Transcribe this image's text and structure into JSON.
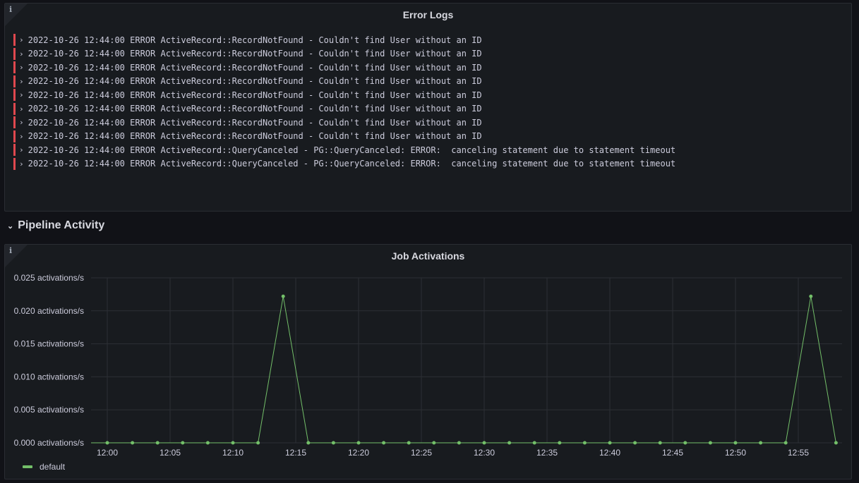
{
  "error_logs": {
    "title": "Error Logs",
    "entries": [
      "2022-10-26 12:44:00 ERROR ActiveRecord::RecordNotFound - Couldn't find User without an ID",
      "2022-10-26 12:44:00 ERROR ActiveRecord::RecordNotFound - Couldn't find User without an ID",
      "2022-10-26 12:44:00 ERROR ActiveRecord::RecordNotFound - Couldn't find User without an ID",
      "2022-10-26 12:44:00 ERROR ActiveRecord::RecordNotFound - Couldn't find User without an ID",
      "2022-10-26 12:44:00 ERROR ActiveRecord::RecordNotFound - Couldn't find User without an ID",
      "2022-10-26 12:44:00 ERROR ActiveRecord::RecordNotFound - Couldn't find User without an ID",
      "2022-10-26 12:44:00 ERROR ActiveRecord::RecordNotFound - Couldn't find User without an ID",
      "2022-10-26 12:44:00 ERROR ActiveRecord::RecordNotFound - Couldn't find User without an ID",
      "2022-10-26 12:44:00 ERROR ActiveRecord::QueryCanceled - PG::QueryCanceled: ERROR:  canceling statement due to statement timeout",
      "2022-10-26 12:44:00 ERROR ActiveRecord::QueryCanceled - PG::QueryCanceled: ERROR:  canceling statement due to statement timeout"
    ],
    "level_color": "#e0484e"
  },
  "row": {
    "title": "Pipeline Activity",
    "collapsed": false
  },
  "chart_data": {
    "type": "line",
    "title": "Job Activations",
    "x": [
      "12:00",
      "12:02",
      "12:04",
      "12:06",
      "12:08",
      "12:10",
      "12:12",
      "12:14",
      "12:16",
      "12:18",
      "12:20",
      "12:22",
      "12:24",
      "12:26",
      "12:28",
      "12:30",
      "12:32",
      "12:34",
      "12:36",
      "12:38",
      "12:40",
      "12:42",
      "12:44",
      "12:46",
      "12:48",
      "12:50",
      "12:52",
      "12:54",
      "12:56",
      "12:58"
    ],
    "series": [
      {
        "name": "default",
        "color": "#73bf69",
        "values": [
          0,
          0,
          0,
          0,
          0,
          0,
          0,
          0.0222,
          0,
          0,
          0,
          0,
          0,
          0,
          0,
          0,
          0,
          0,
          0,
          0,
          0,
          0,
          0,
          0,
          0,
          0,
          0,
          0,
          0.0222,
          0
        ]
      }
    ],
    "x_ticks": [
      "12:00",
      "12:05",
      "12:10",
      "12:15",
      "12:20",
      "12:25",
      "12:30",
      "12:35",
      "12:40",
      "12:45",
      "12:50",
      "12:55"
    ],
    "y_ticks": [
      "0.025 activations/s",
      "0.020 activations/s",
      "0.015 activations/s",
      "0.010 activations/s",
      "0.005 activations/s",
      "0.000 activations/s"
    ],
    "ylim": [
      0,
      0.025
    ],
    "grid": true,
    "legend": "bottom-left"
  }
}
